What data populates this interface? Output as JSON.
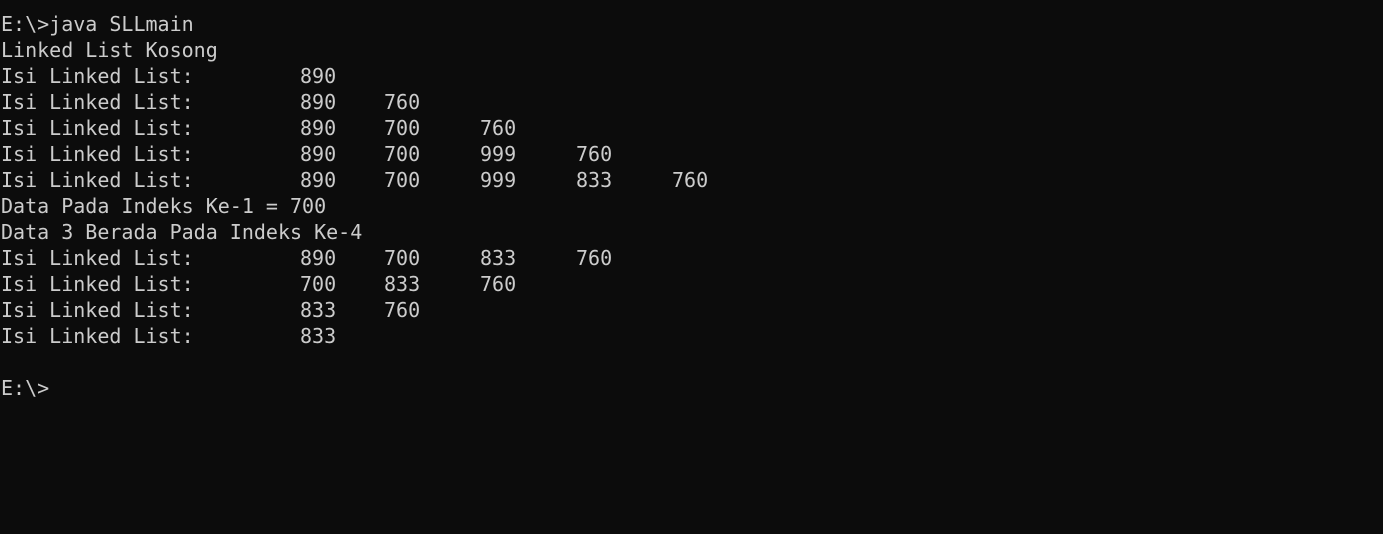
{
  "terminal": {
    "background": "#0c0c0c",
    "foreground": "#cccccc",
    "lines": [
      {
        "cells": [
          "E:\\>java SLLmain"
        ]
      },
      {
        "cells": [
          "Linked List Kosong"
        ]
      },
      {
        "cells": [
          "Isi Linked List:",
          "890"
        ]
      },
      {
        "cells": [
          "Isi Linked List:",
          "890",
          "760"
        ]
      },
      {
        "cells": [
          "Isi Linked List:",
          "890",
          "700",
          "760"
        ]
      },
      {
        "cells": [
          "Isi Linked List:",
          "890",
          "700",
          "999",
          "760"
        ]
      },
      {
        "cells": [
          "Isi Linked List:",
          "890",
          "700",
          "999",
          "833",
          "760"
        ]
      },
      {
        "cells": [
          "Data Pada Indeks Ke-1 = 700"
        ]
      },
      {
        "cells": [
          "Data 3 Berada Pada Indeks Ke-4"
        ]
      },
      {
        "cells": [
          "Isi Linked List:",
          "890",
          "700",
          "833",
          "760"
        ]
      },
      {
        "cells": [
          "Isi Linked List:",
          "700",
          "833",
          "760"
        ]
      },
      {
        "cells": [
          "Isi Linked List:",
          "833",
          "760"
        ]
      },
      {
        "cells": [
          "Isi Linked List:",
          "833"
        ]
      },
      {
        "cells": [
          ""
        ]
      },
      {
        "cells": [
          "E:\\>"
        ]
      }
    ]
  }
}
